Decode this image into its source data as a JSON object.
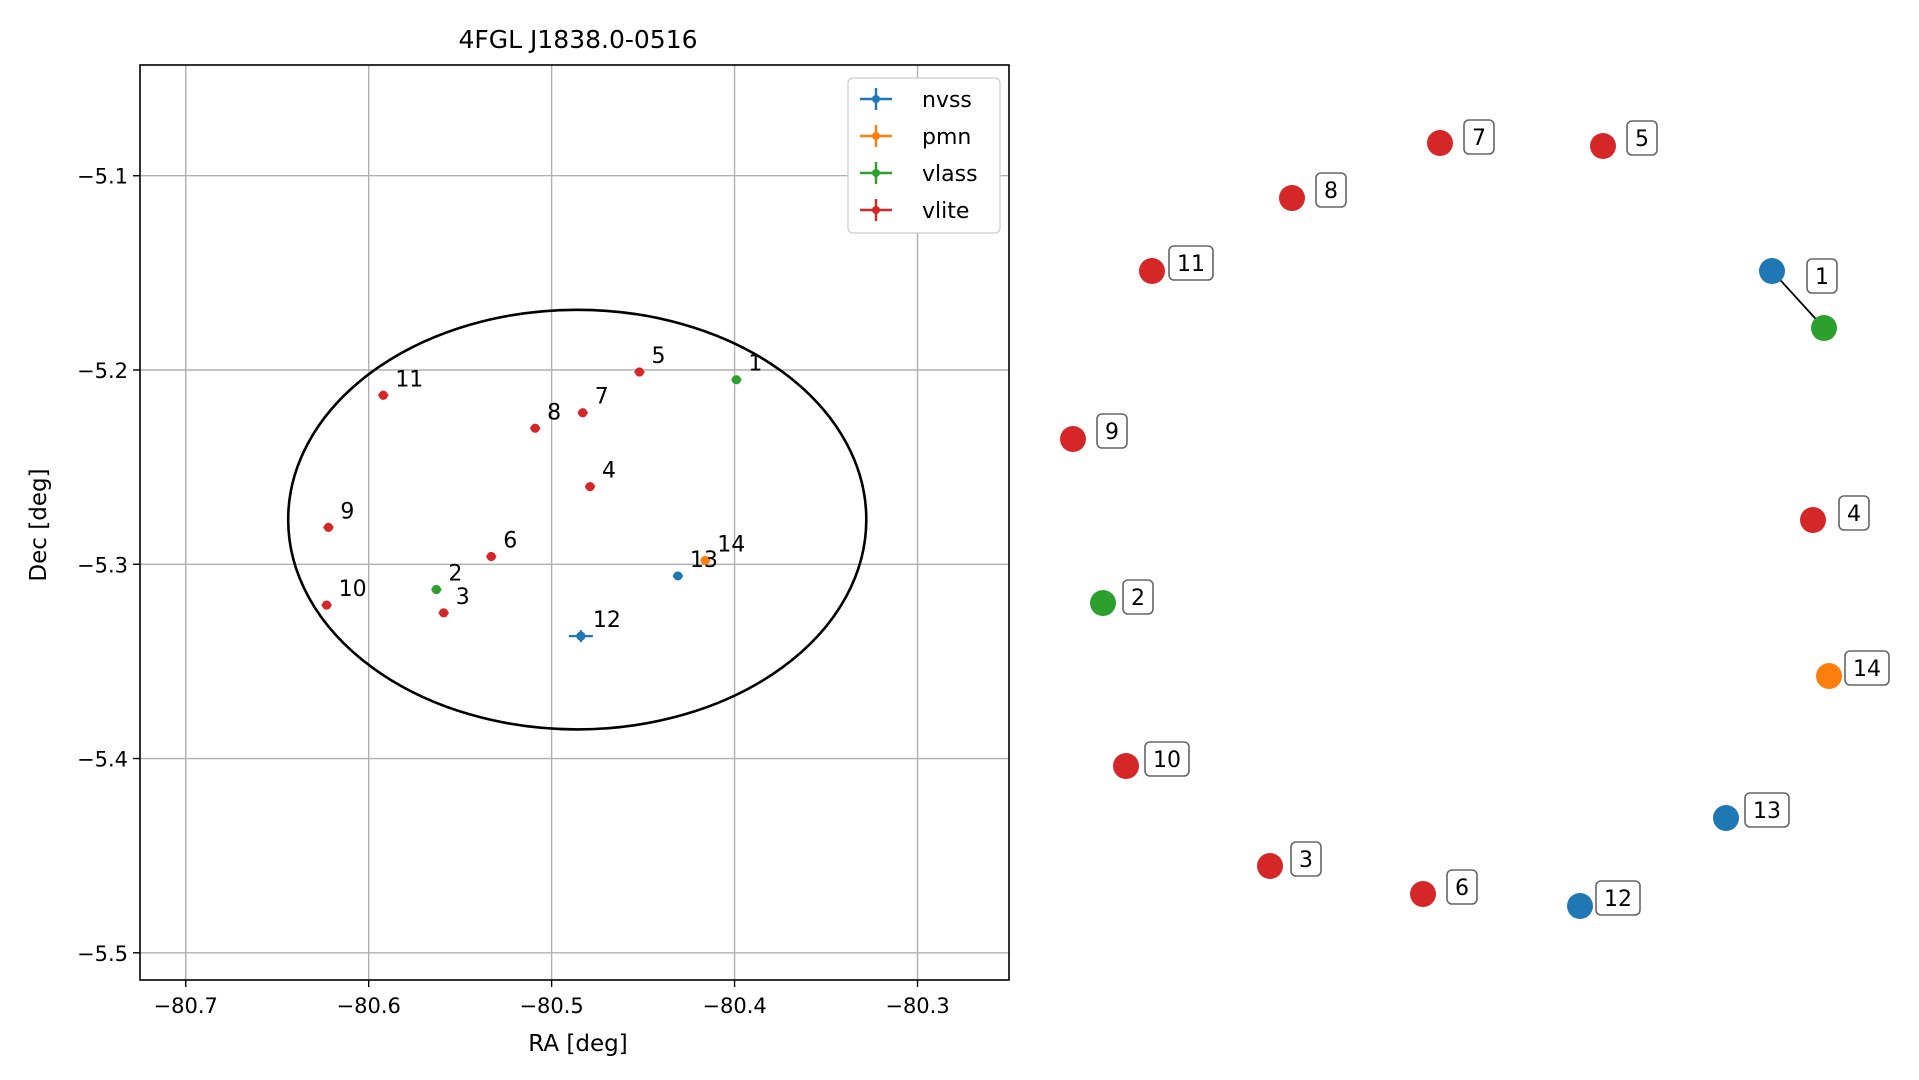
{
  "chart_data": {
    "type": "scatter",
    "title": "4FGL J1838.0-0516",
    "xlabel": "RA [deg]",
    "ylabel": "Dec [deg]",
    "xlim": [
      -80.725,
      -80.25
    ],
    "ylim": [
      -5.514,
      -5.043
    ],
    "x_ticks": [
      -80.7,
      -80.6,
      -80.5,
      -80.4,
      -80.3
    ],
    "x_tick_labels": [
      "−80.7",
      "−80.6",
      "−80.5",
      "−80.4",
      "−80.3"
    ],
    "y_ticks": [
      -5.1,
      -5.2,
      -5.3,
      -5.4,
      -5.5
    ],
    "y_tick_labels": [
      "−5.1",
      "−5.2",
      "−5.3",
      "−5.4",
      "−5.5"
    ],
    "grid": true,
    "legend_position": "top-right",
    "ellipse": {
      "center": [
        -80.486,
        -5.277
      ],
      "semi_ra": 0.158,
      "semi_dec": 0.108
    },
    "series": [
      {
        "name": "nvss",
        "color": "#1f77b4"
      },
      {
        "name": "pmn",
        "color": "#ff7f0e"
      },
      {
        "name": "vlass",
        "color": "#2ca02c"
      },
      {
        "name": "vlite",
        "color": "#d62728"
      }
    ],
    "points": [
      {
        "id": "1",
        "series": "vlass",
        "ra": -80.399,
        "dec": -5.205
      },
      {
        "id": "2",
        "series": "vlass",
        "ra": -80.563,
        "dec": -5.313
      },
      {
        "id": "3",
        "series": "vlite",
        "ra": -80.559,
        "dec": -5.325
      },
      {
        "id": "4",
        "series": "vlite",
        "ra": -80.479,
        "dec": -5.26
      },
      {
        "id": "5",
        "series": "vlite",
        "ra": -80.452,
        "dec": -5.201
      },
      {
        "id": "6",
        "series": "vlite",
        "ra": -80.533,
        "dec": -5.296
      },
      {
        "id": "7",
        "series": "vlite",
        "ra": -80.483,
        "dec": -5.222
      },
      {
        "id": "8",
        "series": "vlite",
        "ra": -80.509,
        "dec": -5.23
      },
      {
        "id": "9",
        "series": "vlite",
        "ra": -80.622,
        "dec": -5.281
      },
      {
        "id": "10",
        "series": "vlite",
        "ra": -80.623,
        "dec": -5.321
      },
      {
        "id": "11",
        "series": "vlite",
        "ra": -80.592,
        "dec": -5.213
      },
      {
        "id": "12",
        "series": "nvss",
        "ra": -80.484,
        "dec": -5.337
      },
      {
        "id": "13",
        "series": "nvss",
        "ra": -80.431,
        "dec": -5.306
      },
      {
        "id": "14",
        "series": "pmn",
        "ra": -80.416,
        "dec": -5.298
      }
    ],
    "label_panel": {
      "lines": [
        [
          "1",
          "1b"
        ]
      ],
      "labels": [
        {
          "text": "1",
          "series": "nvss"
        },
        {
          "text": "1",
          "series": "vlass"
        },
        {
          "text": "2",
          "series": "vlass"
        },
        {
          "text": "3",
          "series": "vlite"
        },
        {
          "text": "4",
          "series": "vlite"
        },
        {
          "text": "5",
          "series": "vlite"
        },
        {
          "text": "6",
          "series": "vlite"
        },
        {
          "text": "7",
          "series": "vlite"
        },
        {
          "text": "8",
          "series": "vlite"
        },
        {
          "text": "9",
          "series": "vlite"
        },
        {
          "text": "10",
          "series": "vlite"
        },
        {
          "text": "11",
          "series": "vlite"
        },
        {
          "text": "12",
          "series": "nvss"
        },
        {
          "text": "13",
          "series": "nvss"
        },
        {
          "text": "14",
          "series": "pmn"
        }
      ]
    }
  }
}
